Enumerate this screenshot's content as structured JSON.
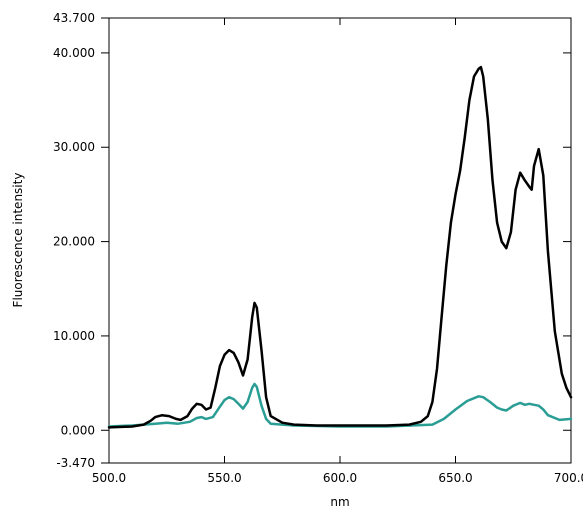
{
  "chart_data": {
    "type": "line",
    "xlabel": "nm",
    "ylabel": "Fluorescence intensity",
    "xlim": [
      500.0,
      700.0
    ],
    "ylim": [
      -3.47,
      43.7
    ],
    "x_ticks": [
      "500.0",
      "550.0",
      "600.0",
      "650.0",
      "700.0"
    ],
    "x_tick_values": [
      500,
      550,
      600,
      650,
      700
    ],
    "y_ticks": [
      "-3.470",
      "0.000",
      "10.000",
      "20.000",
      "30.000",
      "40.000",
      "43.700"
    ],
    "y_tick_values": [
      -3.47,
      0,
      10,
      20,
      30,
      40,
      43.7
    ],
    "grid": false,
    "series": [
      {
        "color": "#000000",
        "x": [
          500,
          510,
          515,
          518,
          520,
          523,
          526,
          529,
          531,
          534,
          536,
          538,
          540,
          542,
          544,
          546,
          548,
          550,
          552,
          554,
          556,
          558,
          560,
          562,
          563,
          564,
          566,
          568,
          570,
          575,
          580,
          590,
          600,
          610,
          620,
          630,
          635,
          638,
          640,
          642,
          644,
          646,
          648,
          650,
          652,
          654,
          656,
          658,
          660,
          661,
          662,
          664,
          666,
          668,
          670,
          672,
          674,
          676,
          678,
          680,
          682,
          683,
          684,
          686,
          688,
          690,
          693,
          696,
          698,
          700
        ],
        "y": [
          0.3,
          0.4,
          0.6,
          1.0,
          1.4,
          1.6,
          1.5,
          1.2,
          1.1,
          1.5,
          2.3,
          2.8,
          2.7,
          2.2,
          2.4,
          4.5,
          6.8,
          8.0,
          8.5,
          8.2,
          7.2,
          5.8,
          7.5,
          12.0,
          13.5,
          13.0,
          8.5,
          3.5,
          1.5,
          0.8,
          0.6,
          0.5,
          0.5,
          0.5,
          0.5,
          0.6,
          0.9,
          1.5,
          3.0,
          6.5,
          12.0,
          17.5,
          22.0,
          25.0,
          27.5,
          31.0,
          35.0,
          37.5,
          38.3,
          38.5,
          37.5,
          33.0,
          26.5,
          22.0,
          20.0,
          19.3,
          21.0,
          25.5,
          27.3,
          26.5,
          25.8,
          25.5,
          28.0,
          29.8,
          27.0,
          19.0,
          10.5,
          6.0,
          4.5,
          3.5
        ]
      },
      {
        "color": "#2a9d94",
        "x": [
          500,
          510,
          520,
          525,
          530,
          535,
          538,
          540,
          542,
          545,
          548,
          550,
          552,
          554,
          556,
          558,
          560,
          562,
          563,
          564,
          566,
          568,
          570,
          580,
          600,
          620,
          640,
          645,
          650,
          655,
          658,
          660,
          662,
          665,
          668,
          670,
          672,
          675,
          678,
          680,
          682,
          684,
          686,
          688,
          690,
          695,
          700
        ],
        "y": [
          0.4,
          0.5,
          0.7,
          0.8,
          0.7,
          0.9,
          1.3,
          1.4,
          1.2,
          1.4,
          2.5,
          3.2,
          3.5,
          3.3,
          2.8,
          2.3,
          3.0,
          4.5,
          4.9,
          4.6,
          2.6,
          1.2,
          0.7,
          0.5,
          0.4,
          0.4,
          0.6,
          1.2,
          2.2,
          3.1,
          3.4,
          3.6,
          3.5,
          3.0,
          2.4,
          2.2,
          2.1,
          2.6,
          2.9,
          2.7,
          2.8,
          2.7,
          2.6,
          2.2,
          1.6,
          1.1,
          1.2
        ]
      }
    ]
  }
}
